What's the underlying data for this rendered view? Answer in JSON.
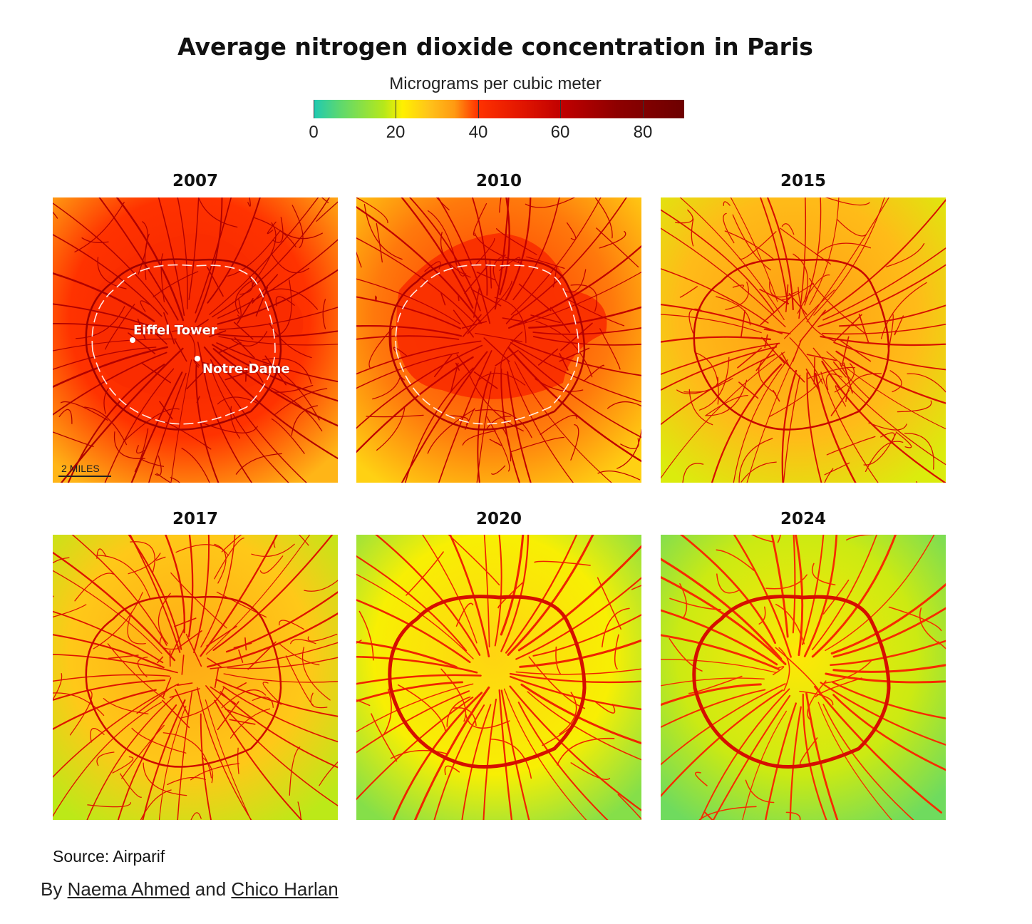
{
  "title": "Average nitrogen dioxide concentration in Paris",
  "legend": {
    "unit": "Micrograms per cubic meter",
    "min": 0,
    "max": 90,
    "ticks": [
      0,
      20,
      40,
      60,
      80
    ],
    "tick_labels": [
      "0",
      "20",
      "40",
      "60",
      "80"
    ]
  },
  "panels": [
    {
      "year": "2007",
      "level": 0.85
    },
    {
      "year": "2010",
      "level": 0.7
    },
    {
      "year": "2015",
      "level": 0.45
    },
    {
      "year": "2017",
      "level": 0.38
    },
    {
      "year": "2020",
      "level": 0.15
    },
    {
      "year": "2024",
      "level": 0.05
    }
  ],
  "annotations": {
    "eiffel": "Eiffel Tower",
    "notre_dame": "Notre-Dame",
    "scale": "2 MILES"
  },
  "source": "Source: Airparif",
  "byline": {
    "prefix": "By",
    "author1": "Naema Ahmed",
    "conj": "and",
    "author2": "Chico Harlan"
  }
}
